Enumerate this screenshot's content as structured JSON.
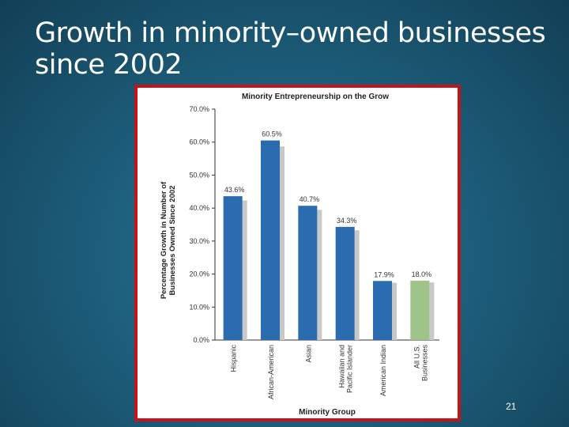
{
  "slide": {
    "title": "Growth in minority–owned businesses since 2002",
    "page_number": "21"
  },
  "colors": {
    "bar": "#2b6cb0",
    "bar_highlight": "#9ec48a",
    "shadow": "#c8c8c8",
    "frame": "#c4141a"
  },
  "chart_data": {
    "type": "bar",
    "title": "Minority Entrepreneurship on the Grow",
    "xlabel": "Minority Group",
    "ylabel_lines": [
      "Percentage Growth in Number of",
      "Businesses Owned Since 2002"
    ],
    "ylim": [
      0,
      70
    ],
    "yticks": [
      0,
      10,
      20,
      30,
      40,
      50,
      60,
      70
    ],
    "ytick_labels": [
      "0.0%",
      "10.0%",
      "20.0%",
      "30.0%",
      "40.0%",
      "50.0%",
      "60.0%",
      "70.0%"
    ],
    "categories": [
      "Hispanic",
      "African-American",
      "Asian",
      "Hawaiian and Pacific Islander",
      "American Indian",
      "All U.S. Businesses"
    ],
    "category_label_lines": [
      [
        "Hispanic"
      ],
      [
        "African-American"
      ],
      [
        "Asian"
      ],
      [
        "Hawaiian and",
        "Pacific Islander"
      ],
      [
        "American Indian"
      ],
      [
        "All U.S.",
        "Businesses"
      ]
    ],
    "values": [
      43.6,
      60.5,
      40.7,
      34.3,
      17.9,
      18.0
    ],
    "value_labels": [
      "43.6%",
      "60.5%",
      "40.7%",
      "34.3%",
      "17.9%",
      "18.0%"
    ],
    "highlight_index": 5
  }
}
